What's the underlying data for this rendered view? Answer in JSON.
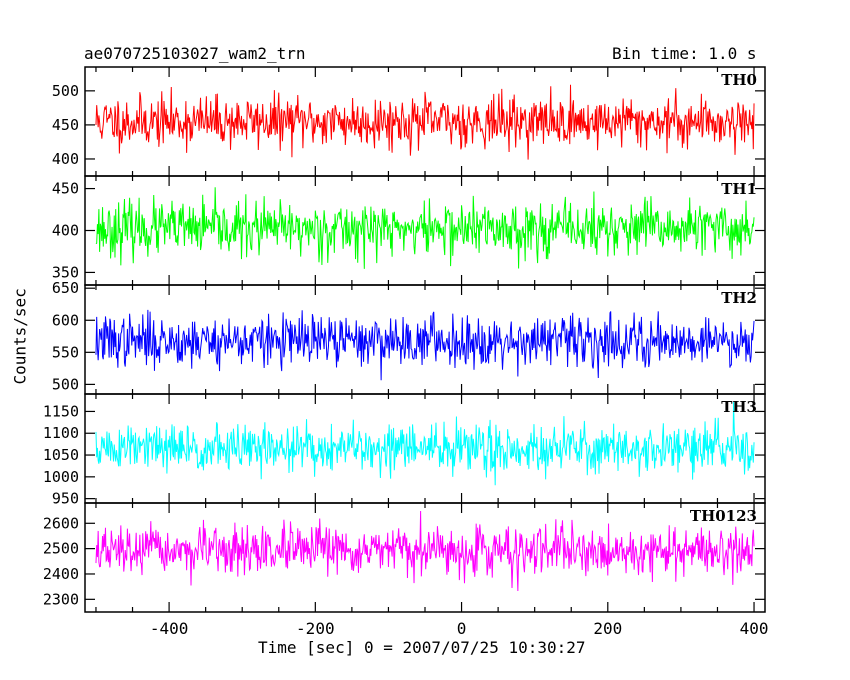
{
  "header": {
    "title": "ae070725103027_wam2_trn",
    "bin_time": "Bin time: 1.0 s"
  },
  "chart_data": {
    "type": "line",
    "xlabel": "Time [sec] 0 = 2007/07/25 10:30:27",
    "ylabel": "Counts/sec",
    "xlim": [
      -515,
      415
    ],
    "x_range": [
      -500,
      400
    ],
    "bin_time_s": 1.0,
    "x_ticks": [
      -400,
      -200,
      0,
      200,
      400
    ],
    "panels": [
      {
        "name": "TH0",
        "color": "#ff0000",
        "ylim": [
          375,
          535
        ],
        "yticks": [
          400,
          450,
          500
        ],
        "mean": 455,
        "amplitude": 30,
        "seed": 11
      },
      {
        "name": "TH1",
        "color": "#00ff00",
        "ylim": [
          335,
          465
        ],
        "yticks": [
          350,
          400,
          450
        ],
        "mean": 402,
        "amplitude": 26,
        "seed": 23
      },
      {
        "name": "TH2",
        "color": "#0000ff",
        "ylim": [
          485,
          655
        ],
        "yticks": [
          500,
          550,
          600,
          650
        ],
        "mean": 568,
        "amplitude": 32,
        "seed": 37
      },
      {
        "name": "TH3",
        "color": "#00ffff",
        "ylim": [
          940,
          1190
        ],
        "yticks": [
          950,
          1000,
          1050,
          1100,
          1150
        ],
        "mean": 1065,
        "amplitude": 45,
        "seed": 51
      },
      {
        "name": "TH0123",
        "color": "#ff00ff",
        "ylim": [
          2250,
          2680
        ],
        "yticks": [
          2300,
          2400,
          2500,
          2600
        ],
        "mean": 2490,
        "amplitude": 75,
        "seed": 67
      }
    ]
  }
}
